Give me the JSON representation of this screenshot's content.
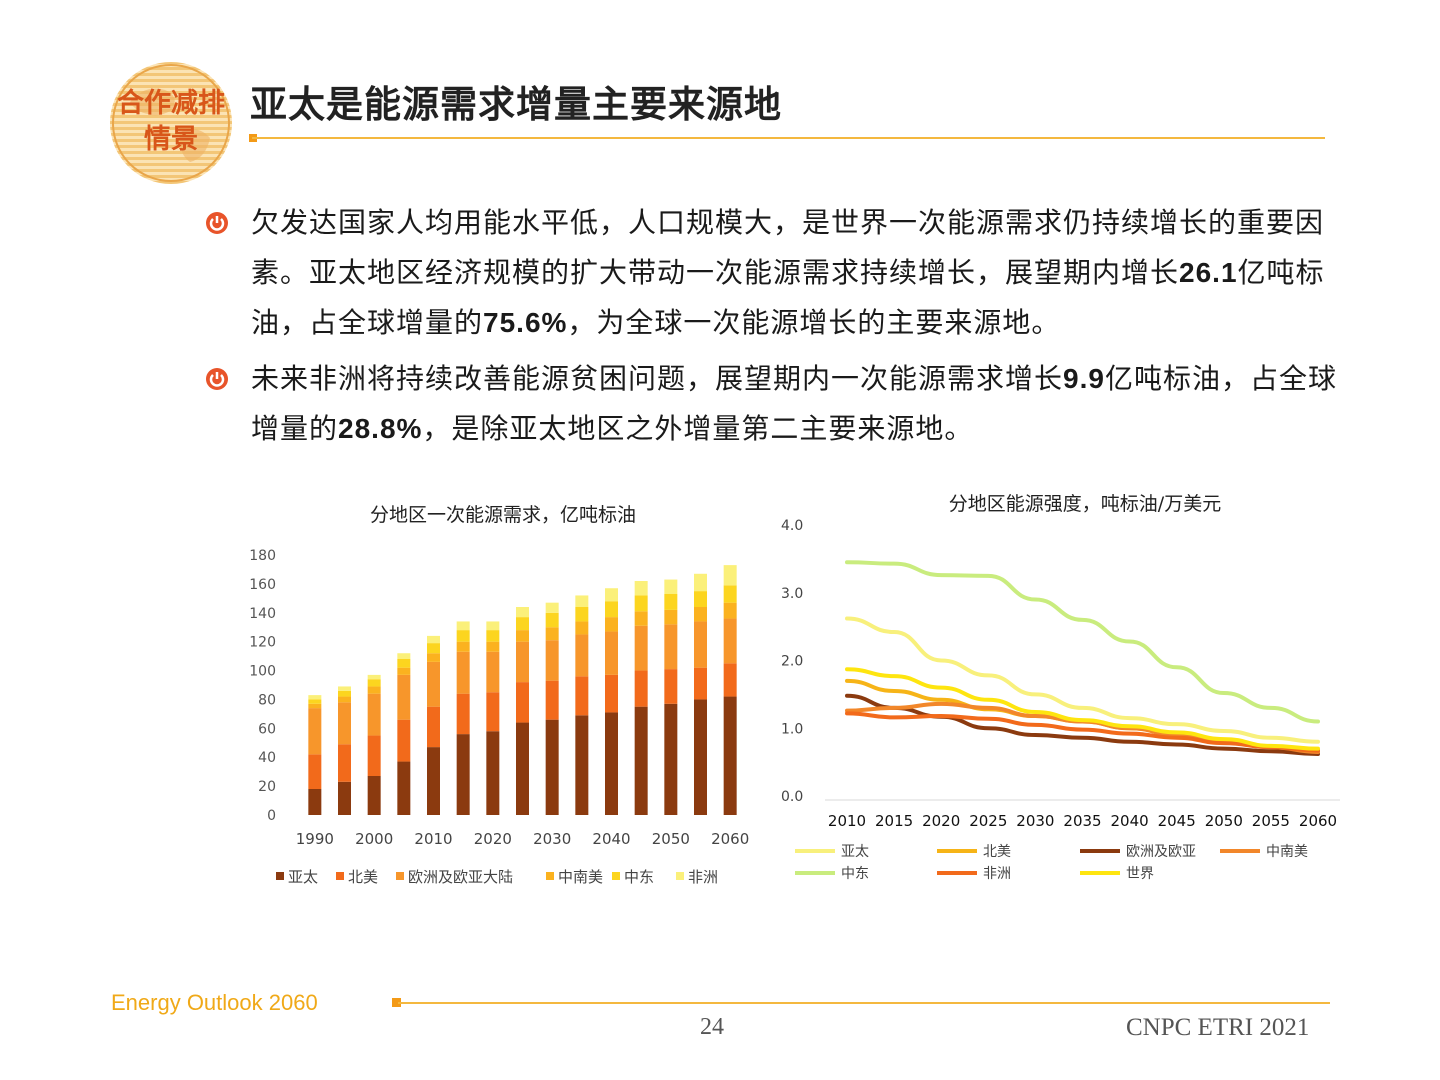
{
  "logo": {
    "line1": "合作减排",
    "line2": "情景"
  },
  "title": "亚太是能源需求增量主要来源地",
  "bullets": [
    {
      "t1": "欠发达国家人均用能水平低，人口规模大，是世界一次能源需求仍持续增长的重要因素。亚太地区经济规模的扩大带动一次能源需求持续增长，展望期内增长",
      "b1": "26.1",
      "t2": "亿吨标油，占全球增量的",
      "b2": "75.6%",
      "t3": "，为全球一次能源增长的主要来源地。"
    },
    {
      "t1": "未来非洲将持续改善能源贫困问题，展望期内一次能源需求增长",
      "b1": "9.9",
      "t2": "亿吨标油，占全球增量的",
      "b2": "28.8%",
      "t3": "，是除亚太地区之外增量第二主要来源地。"
    }
  ],
  "chart_data": [
    {
      "type": "bar",
      "stacked": true,
      "title": "分地区一次能源需求，亿吨标油",
      "categories": [
        "1990",
        "1995",
        "2000",
        "2005",
        "2010",
        "2015",
        "2020",
        "2025",
        "2030",
        "2035",
        "2040",
        "2045",
        "2050",
        "2055",
        "2060"
      ],
      "xticklabels": [
        "1990",
        "2000",
        "2010",
        "2020",
        "2030",
        "2040",
        "2050",
        "2060"
      ],
      "yticks": [
        0,
        20,
        40,
        60,
        80,
        100,
        120,
        140,
        160,
        180
      ],
      "ylim": [
        0,
        180
      ],
      "legend_position": "bottom",
      "series": [
        {
          "name": "亚太",
          "color": "#8b3a0f",
          "values": [
            18,
            23,
            27,
            37,
            47,
            56,
            58,
            64,
            66,
            69,
            71,
            75,
            77,
            80,
            82
          ]
        },
        {
          "name": "北美",
          "color": "#f26a1b",
          "values": [
            24,
            26,
            28,
            29,
            28,
            28,
            27,
            28,
            27,
            27,
            26,
            25,
            24,
            22,
            23
          ]
        },
        {
          "name": "欧洲及欧亚大陆",
          "color": "#f7962b",
          "values": [
            32,
            29,
            29,
            31,
            31,
            29,
            28,
            28,
            28,
            29,
            30,
            31,
            31,
            32,
            31
          ]
        },
        {
          "name": "中南美",
          "color": "#fbb21f",
          "values": [
            3,
            4,
            5,
            5,
            6,
            7,
            7,
            8,
            9,
            9,
            10,
            10,
            10,
            10,
            11
          ]
        },
        {
          "name": "中东",
          "color": "#fcd51f",
          "values": [
            3,
            4,
            5,
            6,
            7,
            8,
            8,
            9,
            10,
            10,
            11,
            11,
            11,
            11,
            12
          ]
        },
        {
          "name": "非洲",
          "color": "#fbf07a",
          "values": [
            3,
            3,
            3,
            4,
            5,
            6,
            6,
            7,
            7,
            8,
            9,
            10,
            10,
            12,
            14
          ]
        }
      ]
    },
    {
      "type": "line",
      "title": "分地区能源强度，吨标油/万美元",
      "x": [
        2010,
        2015,
        2020,
        2025,
        2030,
        2035,
        2040,
        2045,
        2050,
        2055,
        2060
      ],
      "yticks": [
        "0.0",
        "1.0",
        "2.0",
        "3.0",
        "4.0"
      ],
      "ylim": [
        0,
        4
      ],
      "legend_position": "bottom",
      "series": [
        {
          "name": "亚太",
          "color": "#f8f07c",
          "values": [
            2.62,
            2.42,
            2.0,
            1.78,
            1.5,
            1.3,
            1.15,
            1.06,
            0.96,
            0.86,
            0.8
          ]
        },
        {
          "name": "北美",
          "color": "#f6b417",
          "values": [
            1.7,
            1.55,
            1.42,
            1.28,
            1.18,
            1.1,
            1.0,
            0.92,
            0.82,
            0.73,
            0.68
          ]
        },
        {
          "name": "欧洲及欧亚",
          "color": "#8b3a0f",
          "values": [
            1.48,
            1.3,
            1.17,
            1.0,
            0.9,
            0.86,
            0.8,
            0.76,
            0.7,
            0.66,
            0.62
          ]
        },
        {
          "name": "中南美",
          "color": "#f2872a",
          "values": [
            1.26,
            1.3,
            1.36,
            1.3,
            1.18,
            1.1,
            1.0,
            0.9,
            0.8,
            0.72,
            0.65
          ]
        },
        {
          "name": "中东",
          "color": "#c9ec7e",
          "values": [
            3.45,
            3.43,
            3.26,
            3.25,
            2.9,
            2.6,
            2.28,
            1.9,
            1.52,
            1.3,
            1.1
          ]
        },
        {
          "name": "非洲",
          "color": "#f26a1b",
          "values": [
            1.22,
            1.16,
            1.18,
            1.14,
            1.05,
            0.98,
            0.92,
            0.86,
            0.78,
            0.72,
            0.67
          ]
        },
        {
          "name": "世界",
          "color": "#fee50f",
          "values": [
            1.87,
            1.77,
            1.6,
            1.42,
            1.24,
            1.12,
            1.03,
            0.94,
            0.84,
            0.74,
            0.7
          ]
        }
      ]
    }
  ],
  "footer": {
    "left": "Energy Outlook 2060",
    "page": "24",
    "right": "CNPC ETRI 2021"
  }
}
